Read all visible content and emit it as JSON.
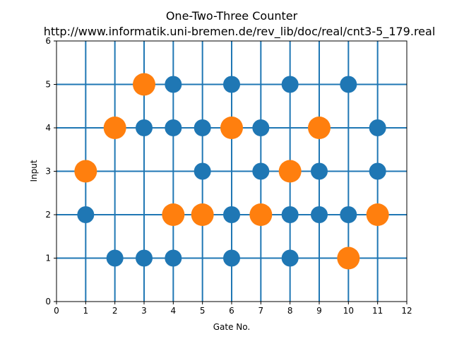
{
  "chart_data": {
    "type": "scatter",
    "title": "One-Two-Three Counter",
    "subtitle": "http://www.informatik.uni-bremen.de/rev_lib/doc/real/cnt3-5_179.real",
    "xlabel": "Gate No.",
    "ylabel": "Input",
    "xlim": [
      0,
      12
    ],
    "ylim": [
      0,
      6
    ],
    "xticks": [
      "0",
      "1",
      "2",
      "3",
      "4",
      "5",
      "6",
      "7",
      "8",
      "9",
      "10",
      "11",
      "12"
    ],
    "yticks": [
      "0",
      "1",
      "2",
      "3",
      "4",
      "5",
      "6"
    ],
    "grid": true,
    "colors": {
      "control": "#1f77b4",
      "target": "#ff7f0e",
      "line": "#1f77b4"
    },
    "series": [
      {
        "points": [
          [
            1,
            2
          ],
          [
            2,
            1
          ],
          [
            3,
            1
          ],
          [
            3,
            4
          ],
          [
            4,
            1
          ],
          [
            4,
            4
          ],
          [
            4,
            5
          ],
          [
            5,
            3
          ],
          [
            5,
            4
          ],
          [
            6,
            1
          ],
          [
            6,
            2
          ],
          [
            6,
            5
          ],
          [
            7,
            3
          ],
          [
            7,
            4
          ],
          [
            8,
            1
          ],
          [
            8,
            2
          ],
          [
            8,
            5
          ],
          [
            9,
            2
          ],
          [
            9,
            3
          ],
          [
            10,
            2
          ],
          [
            10,
            5
          ],
          [
            11,
            3
          ],
          [
            11,
            4
          ]
        ],
        "color": "#1f77b4",
        "marker": "control"
      },
      {
        "points": [
          [
            1,
            3
          ],
          [
            2,
            4
          ],
          [
            3,
            5
          ],
          [
            4,
            2
          ],
          [
            5,
            2
          ],
          [
            6,
            4
          ],
          [
            7,
            2
          ],
          [
            8,
            3
          ],
          [
            9,
            4
          ],
          [
            10,
            1
          ],
          [
            11,
            2
          ]
        ],
        "color": "#ff7f0e",
        "marker": "target"
      }
    ]
  }
}
